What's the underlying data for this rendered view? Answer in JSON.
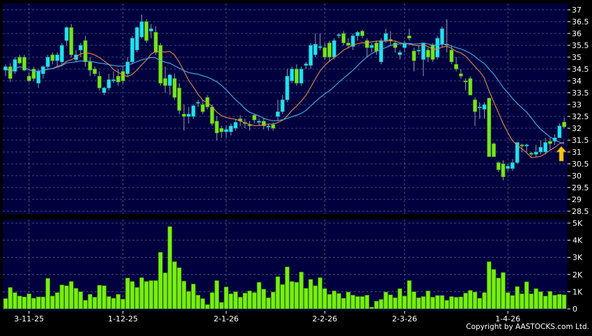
{
  "colors": {
    "background": "#000000",
    "panel": "#00003e",
    "grid": "#5c5c8e",
    "up": "#22e2f0",
    "down": "#77e41e",
    "volume": "#77ee11",
    "ma_short": "#e08a50",
    "ma_long": "#4aaef0",
    "arrow": "#f5c518"
  },
  "copyright": "Copyright by AASTOCKS.com Ltd.",
  "signal_icon": "yellow-up-arrow-icon",
  "chart_data": [
    {
      "type": "candlestick",
      "title": "",
      "ylim": [
        28.5,
        37
      ],
      "y_ticks": [
        "37",
        "36.5",
        "36",
        "35.5",
        "35",
        "34.5",
        "34",
        "33.5",
        "33",
        "32.5",
        "32",
        "31.5",
        "31",
        "30.5",
        "30",
        "29.5",
        "29",
        "28.5"
      ],
      "x_ticks": [
        {
          "label": "3-11-25",
          "index": 5
        },
        {
          "label": "1-12-25",
          "index": 25
        },
        {
          "label": "2-1-26",
          "index": 47
        },
        {
          "label": "2-2-26",
          "index": 68
        },
        {
          "label": "2-3-26",
          "index": 85
        },
        {
          "label": "1-4-26",
          "index": 107
        }
      ],
      "grid": true,
      "moving_averages": [
        {
          "color": "#e08a50"
        },
        {
          "color": "#4aaef0"
        }
      ],
      "ohlc": [
        [
          34.45,
          34.7,
          34.2,
          34.6
        ],
        [
          34.6,
          34.75,
          33.95,
          34.1
        ],
        [
          34.4,
          35.0,
          34.3,
          34.9
        ],
        [
          35.0,
          35.1,
          34.7,
          34.75
        ],
        [
          35.0,
          35.1,
          34.4,
          34.45
        ],
        [
          34.2,
          34.35,
          33.95,
          34.0
        ],
        [
          34.5,
          34.6,
          34.0,
          34.1
        ],
        [
          33.9,
          34.5,
          33.7,
          34.4
        ],
        [
          34.3,
          34.65,
          34.1,
          34.6
        ],
        [
          34.6,
          35.1,
          34.5,
          35.0
        ],
        [
          35.1,
          35.2,
          34.7,
          34.85
        ],
        [
          34.85,
          35.2,
          34.6,
          35.1
        ],
        [
          34.8,
          35.6,
          34.7,
          35.5
        ],
        [
          35.7,
          36.3,
          35.5,
          36.25
        ],
        [
          36.25,
          36.4,
          35.0,
          35.1
        ],
        [
          34.9,
          35.3,
          34.8,
          35.1
        ],
        [
          35.3,
          35.6,
          35.0,
          35.5
        ],
        [
          35.7,
          35.9,
          34.6,
          34.8
        ],
        [
          34.8,
          35.0,
          34.2,
          34.45
        ],
        [
          34.5,
          34.6,
          34.2,
          34.3
        ],
        [
          34.2,
          34.4,
          33.6,
          33.7
        ],
        [
          33.5,
          33.75,
          33.4,
          33.7
        ],
        [
          33.7,
          34.3,
          33.6,
          34.05
        ],
        [
          34.0,
          34.4,
          33.9,
          34.05
        ],
        [
          34.2,
          34.5,
          33.8,
          33.95
        ],
        [
          34.4,
          34.6,
          33.9,
          34.0
        ],
        [
          34.3,
          35.0,
          34.2,
          34.8
        ],
        [
          34.8,
          35.9,
          34.7,
          35.8
        ],
        [
          35.3,
          36.3,
          35.2,
          36.25
        ],
        [
          35.85,
          36.8,
          35.8,
          36.5
        ],
        [
          36.5,
          36.6,
          35.6,
          35.7
        ],
        [
          36.1,
          36.4,
          35.8,
          36.2
        ],
        [
          36.05,
          36.3,
          35.1,
          35.2
        ],
        [
          35.5,
          35.6,
          33.8,
          33.9
        ],
        [
          34.1,
          34.6,
          33.5,
          33.8
        ],
        [
          33.8,
          34.3,
          33.4,
          34.25
        ],
        [
          34.1,
          34.3,
          33.2,
          33.3
        ],
        [
          33.7,
          33.9,
          32.6,
          32.75
        ],
        [
          32.6,
          33.0,
          31.9,
          32.5
        ],
        [
          32.5,
          32.9,
          32.2,
          32.6
        ],
        [
          32.5,
          33.0,
          32.4,
          32.95
        ],
        [
          33.1,
          33.2,
          32.9,
          33.1
        ],
        [
          33.0,
          33.2,
          32.6,
          32.7
        ],
        [
          33.3,
          33.4,
          32.8,
          32.9
        ],
        [
          32.9,
          33.0,
          32.1,
          32.2
        ],
        [
          32.3,
          32.5,
          31.5,
          31.8
        ],
        [
          32.0,
          32.1,
          31.6,
          31.85
        ],
        [
          31.85,
          32.1,
          31.6,
          31.95
        ],
        [
          31.85,
          32.2,
          31.7,
          32.1
        ],
        [
          32.0,
          32.4,
          31.9,
          32.25
        ],
        [
          32.4,
          32.55,
          32.1,
          32.3
        ],
        [
          32.25,
          32.4,
          32.0,
          32.2
        ],
        [
          32.15,
          32.3,
          31.9,
          32.1
        ],
        [
          32.55,
          32.6,
          32.2,
          32.35
        ],
        [
          32.25,
          32.4,
          32.1,
          32.3
        ],
        [
          32.3,
          32.45,
          31.95,
          32.1
        ],
        [
          32.05,
          32.2,
          31.9,
          32.1
        ],
        [
          32.15,
          32.25,
          31.9,
          32.0
        ],
        [
          32.5,
          33.2,
          32.3,
          32.7
        ],
        [
          32.7,
          33.4,
          32.6,
          33.2
        ],
        [
          33.2,
          34.5,
          33.1,
          34.2
        ],
        [
          34.0,
          34.6,
          33.9,
          34.5
        ],
        [
          34.5,
          34.7,
          33.8,
          33.9
        ],
        [
          33.9,
          34.6,
          33.8,
          34.5
        ],
        [
          34.65,
          34.8,
          34.5,
          34.72
        ],
        [
          34.65,
          35.6,
          34.5,
          35.5
        ],
        [
          35.1,
          36.0,
          35.0,
          35.55
        ],
        [
          35.4,
          36.0,
          35.3,
          35.45
        ],
        [
          35.4,
          35.6,
          34.9,
          35.0
        ],
        [
          35.6,
          35.7,
          34.8,
          35.0
        ],
        [
          35.0,
          35.8,
          34.9,
          35.7
        ],
        [
          35.95,
          36.0,
          35.8,
          35.95
        ],
        [
          36.0,
          36.1,
          35.5,
          35.6
        ],
        [
          35.6,
          35.8,
          35.4,
          35.5
        ],
        [
          35.45,
          36.0,
          35.3,
          35.9
        ],
        [
          35.9,
          36.1,
          35.7,
          36.05
        ],
        [
          36.1,
          36.15,
          35.8,
          35.9
        ],
        [
          35.7,
          35.8,
          35.0,
          35.4
        ],
        [
          35.4,
          35.6,
          35.2,
          35.5
        ],
        [
          35.6,
          35.7,
          35.1,
          35.25
        ],
        [
          34.8,
          35.8,
          34.7,
          35.7
        ],
        [
          35.7,
          36.2,
          35.6,
          36.0
        ],
        [
          35.75,
          36.1,
          35.5,
          35.7
        ],
        [
          35.6,
          35.7,
          35.2,
          35.4
        ],
        [
          35.1,
          35.3,
          34.9,
          35.2
        ],
        [
          35.4,
          35.7,
          35.2,
          35.6
        ],
        [
          35.9,
          36.2,
          35.7,
          35.8
        ],
        [
          35.26,
          35.4,
          34.4,
          34.85
        ],
        [
          35.3,
          35.5,
          35.1,
          35.3
        ],
        [
          34.9,
          35.6,
          34.2,
          35.6
        ],
        [
          35.3,
          35.4,
          34.8,
          35.0
        ],
        [
          35.5,
          35.6,
          34.8,
          34.9
        ],
        [
          35.0,
          35.9,
          34.9,
          35.8
        ],
        [
          35.55,
          36.3,
          35.4,
          36.2
        ],
        [
          35.55,
          36.6,
          35.2,
          35.5
        ],
        [
          35.3,
          35.5,
          34.7,
          34.8
        ],
        [
          34.7,
          35.0,
          34.4,
          34.5
        ],
        [
          34.3,
          34.5,
          34.1,
          34.2
        ],
        [
          34.0,
          34.1,
          33.6,
          33.95
        ],
        [
          34.1,
          34.2,
          33.4,
          33.4
        ],
        [
          33.2,
          33.3,
          32.1,
          32.7
        ],
        [
          32.9,
          33.1,
          32.4,
          32.9
        ],
        [
          32.8,
          33.1,
          32.4,
          33.0
        ],
        [
          33.27,
          33.3,
          30.8,
          30.8
        ],
        [
          31.35,
          31.4,
          30.8,
          30.8
        ],
        [
          30.55,
          30.6,
          30.15,
          30.25
        ],
        [
          30.5,
          30.65,
          29.8,
          29.95
        ],
        [
          30.3,
          30.5,
          30.2,
          30.4
        ],
        [
          30.3,
          30.7,
          30.2,
          30.55
        ],
        [
          30.55,
          31.4,
          30.5,
          31.4
        ],
        [
          31.3,
          31.35,
          31.0,
          31.25
        ],
        [
          31.25,
          31.35,
          31.0,
          31.3
        ],
        [
          30.95,
          31.0,
          30.8,
          30.9
        ],
        [
          30.9,
          31.3,
          30.8,
          31.0
        ],
        [
          31.0,
          31.5,
          30.9,
          31.2
        ],
        [
          31.0,
          31.6,
          30.9,
          31.4
        ],
        [
          31.45,
          31.6,
          31.1,
          31.35
        ],
        [
          31.45,
          31.75,
          31.3,
          31.6
        ],
        [
          31.6,
          32.2,
          31.6,
          32.1
        ],
        [
          32.26,
          32.45,
          32.0,
          32.06
        ]
      ]
    },
    {
      "type": "bar",
      "title": "",
      "unit": "K",
      "ylim": [
        0,
        5
      ],
      "y_ticks": [
        "5K",
        "4K",
        "3K",
        "2K",
        "1K",
        "0"
      ],
      "grid": true,
      "values": [
        0.6,
        1.25,
        0.95,
        0.75,
        0.7,
        0.88,
        0.62,
        0.7,
        0.7,
        1.78,
        0.75,
        0.95,
        1.4,
        1.35,
        1.6,
        1.2,
        1.0,
        0.5,
        0.85,
        0.68,
        1.38,
        1.35,
        0.72,
        0.62,
        0.85,
        0.57,
        1.8,
        1.6,
        1.25,
        1.82,
        1.6,
        1.65,
        1.65,
        3.3,
        2.1,
        4.8,
        2.75,
        2.4,
        1.62,
        1.02,
        1.45,
        0.8,
        0.6,
        0.25,
        0.95,
        1.65,
        0.38,
        1.28,
        0.88,
        1.0,
        0.68,
        0.92,
        1.05,
        0.95,
        1.55,
        1.15,
        0.65,
        0.98,
        1.88,
        1.42,
        2.45,
        1.6,
        1.55,
        2.15,
        1.2,
        1.72,
        1.35,
        1.82,
        1.18,
        0.85,
        1.05,
        0.9,
        0.62,
        0.98,
        0.8,
        0.72,
        0.72,
        0.8,
        0.1,
        0.45,
        0.55,
        0.98,
        0.82,
        0.65,
        1.18,
        0.75,
        1.65,
        1.0,
        0.65,
        0.72,
        1.05,
        0.68,
        0.78,
        0.78,
        0.5,
        0.72,
        0.68,
        0.7,
        0.92,
        1.08,
        0.98,
        0.62,
        0.95,
        2.75,
        2.3,
        1.8,
        2.12,
        0.95,
        0.78,
        1.3,
        0.88,
        1.58,
        0.88,
        1.18,
        1.0,
        0.75,
        1.02,
        0.8,
        0.85,
        0.82
      ]
    }
  ]
}
